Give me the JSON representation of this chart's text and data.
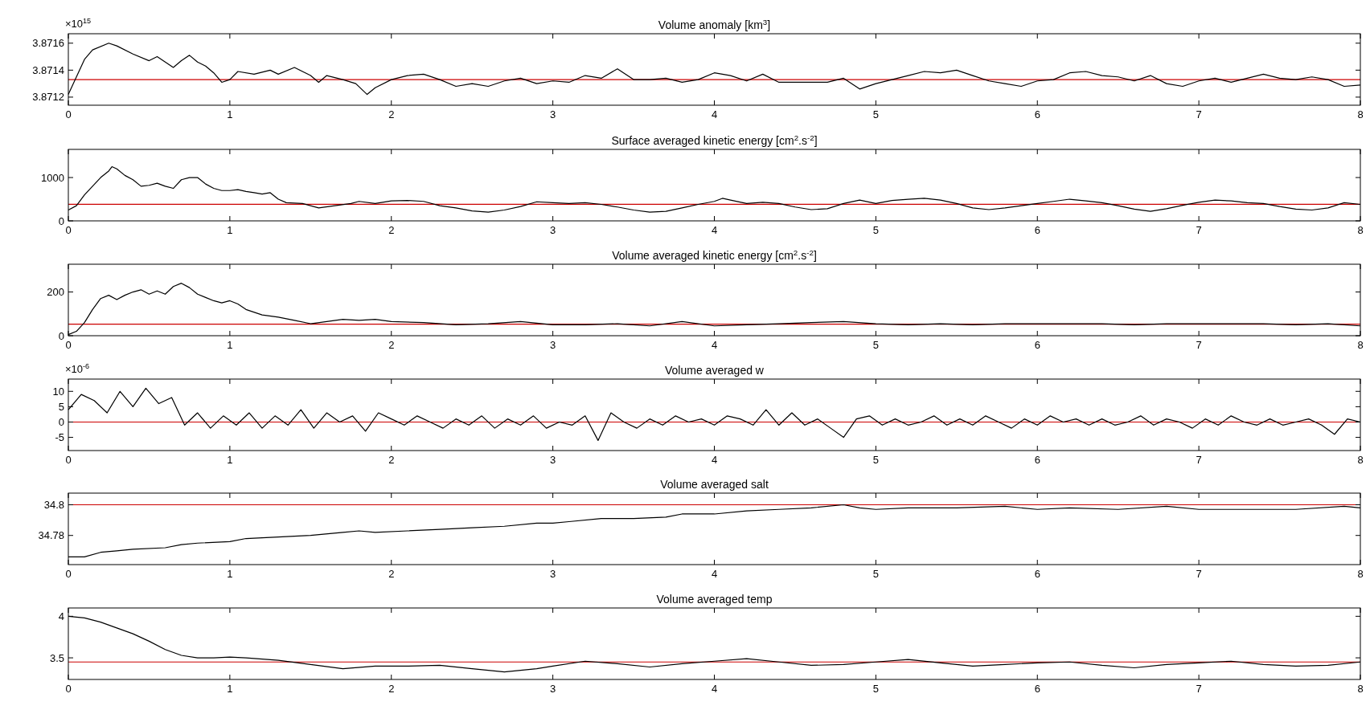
{
  "chart_data": [
    {
      "type": "line",
      "title": "Volume anomaly [km$^{3}$]",
      "annotations": [
        "×10$^{15}$"
      ],
      "xlim": [
        0,
        8
      ],
      "xticks": [
        0,
        1,
        2,
        3,
        4,
        5,
        6,
        7,
        8
      ],
      "ylim": [
        3.87114,
        3.87167
      ],
      "yticks": [
        3.8712,
        3.8714,
        3.8716
      ],
      "x": [
        0,
        0.05,
        0.1,
        0.15,
        0.25,
        0.3,
        0.4,
        0.5,
        0.55,
        0.6,
        0.65,
        0.7,
        0.75,
        0.8,
        0.85,
        0.9,
        0.95,
        1.0,
        1.05,
        1.15,
        1.25,
        1.3,
        1.4,
        1.5,
        1.55,
        1.6,
        1.7,
        1.78,
        1.85,
        1.9,
        2.0,
        2.1,
        2.2,
        2.3,
        2.4,
        2.5,
        2.6,
        2.7,
        2.8,
        2.9,
        3.0,
        3.1,
        3.2,
        3.3,
        3.4,
        3.5,
        3.6,
        3.7,
        3.8,
        3.9,
        4.0,
        4.1,
        4.2,
        4.3,
        4.4,
        4.5,
        4.6,
        4.7,
        4.8,
        4.9,
        5.0,
        5.1,
        5.2,
        5.3,
        5.4,
        5.5,
        5.6,
        5.7,
        5.8,
        5.9,
        6.0,
        6.1,
        6.2,
        6.3,
        6.4,
        6.5,
        6.6,
        6.7,
        6.8,
        6.9,
        7.0,
        7.1,
        7.2,
        7.3,
        7.4,
        7.5,
        7.6,
        7.7,
        7.8,
        7.9,
        8.0
      ],
      "series": [
        {
          "color": "#000000",
          "values": [
            3.87122,
            3.87135,
            3.87148,
            3.87155,
            3.8716,
            3.87158,
            3.87152,
            3.87147,
            3.8715,
            3.87146,
            3.87142,
            3.87147,
            3.87151,
            3.87146,
            3.87143,
            3.87138,
            3.87131,
            3.87133,
            3.87139,
            3.87137,
            3.8714,
            3.87137,
            3.87142,
            3.87136,
            3.87131,
            3.87136,
            3.87133,
            3.8713,
            3.87122,
            3.87127,
            3.87133,
            3.87136,
            3.87137,
            3.87133,
            3.87128,
            3.8713,
            3.87128,
            3.87132,
            3.87134,
            3.8713,
            3.87132,
            3.87131,
            3.87136,
            3.87134,
            3.87141,
            3.87133,
            3.87133,
            3.87134,
            3.87131,
            3.87133,
            3.87138,
            3.87136,
            3.87132,
            3.87137,
            3.87131,
            3.87131,
            3.87131,
            3.87131,
            3.87134,
            3.87126,
            3.8713,
            3.87133,
            3.87136,
            3.87139,
            3.87138,
            3.8714,
            3.87136,
            3.87132,
            3.8713,
            3.87128,
            3.87132,
            3.87133,
            3.87138,
            3.87139,
            3.87136,
            3.87135,
            3.87132,
            3.87136,
            3.8713,
            3.87128,
            3.87132,
            3.87134,
            3.87131,
            3.87134,
            3.87137,
            3.87134,
            3.87133,
            3.87135,
            3.87133,
            3.87128,
            3.87129
          ]
        }
      ],
      "ref_lines": [
        {
          "axis": "y",
          "value": 3.87133,
          "color": "#cc0000"
        }
      ]
    },
    {
      "type": "line",
      "title": "Surface averaged kinetic energy [cm$^{2}$.s$^{-2}$]",
      "xlim": [
        0,
        8
      ],
      "xticks": [
        0,
        1,
        2,
        3,
        4,
        5,
        6,
        7,
        8
      ],
      "ylim": [
        0,
        1650
      ],
      "yticks": [
        0,
        1000
      ],
      "x": [
        0,
        0.05,
        0.1,
        0.15,
        0.2,
        0.25,
        0.27,
        0.3,
        0.35,
        0.4,
        0.45,
        0.5,
        0.55,
        0.6,
        0.65,
        0.7,
        0.75,
        0.8,
        0.85,
        0.9,
        0.95,
        1.0,
        1.05,
        1.1,
        1.15,
        1.2,
        1.25,
        1.3,
        1.35,
        1.45,
        1.55,
        1.65,
        1.75,
        1.8,
        1.9,
        2.0,
        2.1,
        2.2,
        2.3,
        2.4,
        2.5,
        2.6,
        2.7,
        2.8,
        2.9,
        3.0,
        3.1,
        3.2,
        3.3,
        3.4,
        3.5,
        3.6,
        3.7,
        3.8,
        3.9,
        4.0,
        4.05,
        4.1,
        4.2,
        4.3,
        4.4,
        4.5,
        4.6,
        4.7,
        4.8,
        4.9,
        5.0,
        5.1,
        5.2,
        5.3,
        5.4,
        5.5,
        5.6,
        5.7,
        5.8,
        5.9,
        6.0,
        6.1,
        6.2,
        6.3,
        6.4,
        6.5,
        6.6,
        6.7,
        6.8,
        6.9,
        7.0,
        7.1,
        7.2,
        7.3,
        7.4,
        7.5,
        7.6,
        7.7,
        7.8,
        7.9,
        8.0
      ],
      "series": [
        {
          "color": "#000000",
          "values": [
            250,
            350,
            600,
            800,
            1000,
            1150,
            1250,
            1200,
            1050,
            950,
            800,
            820,
            870,
            800,
            750,
            950,
            1000,
            1000,
            850,
            750,
            700,
            700,
            720,
            680,
            650,
            620,
            650,
            500,
            420,
            400,
            300,
            350,
            400,
            450,
            400,
            460,
            470,
            450,
            350,
            300,
            230,
            200,
            250,
            330,
            440,
            420,
            400,
            420,
            380,
            320,
            250,
            200,
            220,
            300,
            380,
            450,
            520,
            480,
            400,
            430,
            400,
            320,
            260,
            280,
            400,
            480,
            400,
            470,
            500,
            520,
            480,
            400,
            300,
            260,
            300,
            350,
            400,
            450,
            500,
            460,
            420,
            350,
            270,
            220,
            280,
            360,
            430,
            480,
            460,
            420,
            400,
            330,
            270,
            250,
            300,
            420,
            380
          ]
        }
      ],
      "ref_lines": [
        {
          "axis": "y",
          "value": 383,
          "color": "#cc0000"
        }
      ]
    },
    {
      "type": "line",
      "title": "Volume averaged kinetic energy [cm$^{2}$.s$^{-2}$]",
      "xlim": [
        0,
        8
      ],
      "xticks": [
        0,
        1,
        2,
        3,
        4,
        5,
        6,
        7,
        8
      ],
      "ylim": [
        0,
        327
      ],
      "yticks": [
        0,
        200
      ],
      "x": [
        0,
        0.05,
        0.1,
        0.15,
        0.2,
        0.25,
        0.3,
        0.35,
        0.4,
        0.45,
        0.5,
        0.55,
        0.6,
        0.65,
        0.7,
        0.75,
        0.8,
        0.85,
        0.9,
        0.95,
        1.0,
        1.05,
        1.1,
        1.2,
        1.3,
        1.4,
        1.5,
        1.6,
        1.7,
        1.8,
        1.9,
        2.0,
        2.2,
        2.4,
        2.6,
        2.8,
        3.0,
        3.2,
        3.4,
        3.6,
        3.8,
        4.0,
        4.2,
        4.4,
        4.6,
        4.8,
        5.0,
        5.2,
        5.4,
        5.6,
        5.8,
        6.0,
        6.2,
        6.4,
        6.6,
        6.8,
        7.0,
        7.2,
        7.4,
        7.6,
        7.8,
        8.0
      ],
      "series": [
        {
          "color": "#000000",
          "values": [
            5,
            20,
            60,
            120,
            170,
            185,
            165,
            185,
            200,
            210,
            190,
            205,
            190,
            225,
            240,
            220,
            190,
            175,
            160,
            150,
            160,
            145,
            120,
            95,
            85,
            70,
            55,
            65,
            75,
            70,
            75,
            65,
            60,
            50,
            55,
            65,
            50,
            50,
            55,
            45,
            65,
            45,
            50,
            55,
            60,
            65,
            55,
            50,
            55,
            50,
            55,
            55,
            55,
            55,
            50,
            55,
            55,
            55,
            55,
            50,
            55,
            45
          ]
        }
      ],
      "ref_lines": [
        {
          "axis": "y",
          "value": 53,
          "color": "#cc0000"
        }
      ]
    },
    {
      "type": "line",
      "title": "Volume averaged w",
      "annotations": [
        "×10$^{-6}$"
      ],
      "xlim": [
        0,
        8
      ],
      "xticks": [
        0,
        1,
        2,
        3,
        4,
        5,
        6,
        7,
        8
      ],
      "ylim": [
        -9.3,
        14
      ],
      "yticks": [
        -5,
        0,
        5,
        10
      ],
      "x": [
        0,
        0.08,
        0.16,
        0.24,
        0.32,
        0.4,
        0.48,
        0.56,
        0.64,
        0.72,
        0.8,
        0.88,
        0.96,
        1.04,
        1.12,
        1.2,
        1.28,
        1.36,
        1.44,
        1.52,
        1.6,
        1.68,
        1.76,
        1.84,
        1.92,
        2.0,
        2.08,
        2.16,
        2.24,
        2.32,
        2.4,
        2.48,
        2.56,
        2.64,
        2.72,
        2.8,
        2.88,
        2.96,
        3.04,
        3.12,
        3.2,
        3.28,
        3.36,
        3.44,
        3.52,
        3.6,
        3.68,
        3.76,
        3.84,
        3.92,
        4.0,
        4.08,
        4.16,
        4.24,
        4.32,
        4.4,
        4.48,
        4.56,
        4.64,
        4.72,
        4.8,
        4.88,
        4.96,
        5.04,
        5.12,
        5.2,
        5.28,
        5.36,
        5.44,
        5.52,
        5.6,
        5.68,
        5.76,
        5.84,
        5.92,
        6.0,
        6.08,
        6.16,
        6.24,
        6.32,
        6.4,
        6.48,
        6.56,
        6.64,
        6.72,
        6.8,
        6.88,
        6.96,
        7.04,
        7.12,
        7.2,
        7.28,
        7.36,
        7.44,
        7.52,
        7.6,
        7.68,
        7.76,
        7.84,
        7.92,
        8.0
      ],
      "series": [
        {
          "color": "#000000",
          "values": [
            4,
            9,
            7,
            3,
            10,
            5,
            11,
            6,
            8,
            -1,
            3,
            -2,
            2,
            -1,
            3,
            -2,
            2,
            -1,
            4,
            -2,
            3,
            0,
            2,
            -3,
            3,
            1,
            -1,
            2,
            0,
            -2,
            1,
            -1,
            2,
            -2,
            1,
            -1,
            2,
            -2,
            0,
            -1,
            2,
            -6,
            3,
            0,
            -2,
            1,
            -1,
            2,
            0,
            1,
            -1,
            2,
            1,
            -1,
            4,
            -1,
            3,
            -1,
            1,
            -2,
            -5,
            1,
            2,
            -1,
            1,
            -1,
            0,
            2,
            -1,
            1,
            -1,
            2,
            0,
            -2,
            1,
            -1,
            2,
            0,
            1,
            -1,
            1,
            -1,
            0,
            2,
            -1,
            1,
            0,
            -2,
            1,
            -1,
            2,
            0,
            -1,
            1,
            -1,
            0,
            1,
            -1,
            -4,
            1,
            0
          ]
        }
      ],
      "ref_lines": [
        {
          "axis": "y",
          "value": 0,
          "color": "#cc0000"
        }
      ]
    },
    {
      "type": "line",
      "title": "Volume averaged salt",
      "xlim": [
        0,
        8
      ],
      "xticks": [
        0,
        1,
        2,
        3,
        4,
        5,
        6,
        7,
        8
      ],
      "ylim": [
        34.761,
        34.8076
      ],
      "yticks": [
        34.78,
        34.8
      ],
      "x": [
        0,
        0.1,
        0.2,
        0.3,
        0.4,
        0.6,
        0.7,
        0.8,
        1.0,
        1.1,
        1.3,
        1.5,
        1.7,
        1.8,
        1.9,
        2.1,
        2.3,
        2.5,
        2.7,
        2.9,
        3.0,
        3.1,
        3.3,
        3.5,
        3.7,
        3.8,
        4.0,
        4.2,
        4.4,
        4.6,
        4.8,
        4.9,
        5.0,
        5.2,
        5.5,
        5.8,
        6.0,
        6.2,
        6.5,
        6.8,
        7.0,
        7.3,
        7.6,
        7.9,
        8.0
      ],
      "series": [
        {
          "color": "#000000",
          "values": [
            34.766,
            34.766,
            34.769,
            34.77,
            34.771,
            34.772,
            34.774,
            34.775,
            34.776,
            34.778,
            34.779,
            34.78,
            34.782,
            34.783,
            34.782,
            34.783,
            34.784,
            34.785,
            34.786,
            34.788,
            34.788,
            34.789,
            34.791,
            34.791,
            34.792,
            34.794,
            34.794,
            34.796,
            34.797,
            34.798,
            34.8,
            34.798,
            34.797,
            34.798,
            34.798,
            34.799,
            34.797,
            34.798,
            34.797,
            34.799,
            34.797,
            34.797,
            34.797,
            34.799,
            34.798
          ]
        }
      ],
      "ref_lines": [
        {
          "axis": "y",
          "value": 34.8,
          "color": "#cc0000"
        }
      ]
    },
    {
      "type": "line",
      "title": "Volume averaged temp",
      "xlim": [
        0,
        8
      ],
      "xticks": [
        0,
        1,
        2,
        3,
        4,
        5,
        6,
        7,
        8
      ],
      "ylim": [
        3.24,
        4.1
      ],
      "yticks": [
        3.5,
        4
      ],
      "x": [
        0,
        0.1,
        0.2,
        0.3,
        0.4,
        0.5,
        0.6,
        0.7,
        0.8,
        0.9,
        1.0,
        1.1,
        1.3,
        1.5,
        1.7,
        1.9,
        2.1,
        2.3,
        2.5,
        2.7,
        2.9,
        3.0,
        3.2,
        3.4,
        3.6,
        3.8,
        4.0,
        4.2,
        4.4,
        4.6,
        4.8,
        5.0,
        5.2,
        5.4,
        5.6,
        5.8,
        6.0,
        6.2,
        6.4,
        6.6,
        6.8,
        7.0,
        7.2,
        7.4,
        7.6,
        7.8,
        8.0
      ],
      "series": [
        {
          "color": "#000000",
          "values": [
            4.0,
            3.98,
            3.93,
            3.86,
            3.79,
            3.7,
            3.6,
            3.53,
            3.5,
            3.5,
            3.51,
            3.5,
            3.47,
            3.42,
            3.37,
            3.4,
            3.4,
            3.41,
            3.37,
            3.33,
            3.37,
            3.4,
            3.46,
            3.43,
            3.39,
            3.43,
            3.46,
            3.49,
            3.45,
            3.41,
            3.42,
            3.45,
            3.48,
            3.44,
            3.4,
            3.42,
            3.44,
            3.45,
            3.41,
            3.38,
            3.42,
            3.44,
            3.46,
            3.42,
            3.4,
            3.41,
            3.45
          ]
        }
      ],
      "ref_lines": [
        {
          "axis": "y",
          "value": 3.45,
          "color": "#cc0000"
        }
      ]
    }
  ]
}
